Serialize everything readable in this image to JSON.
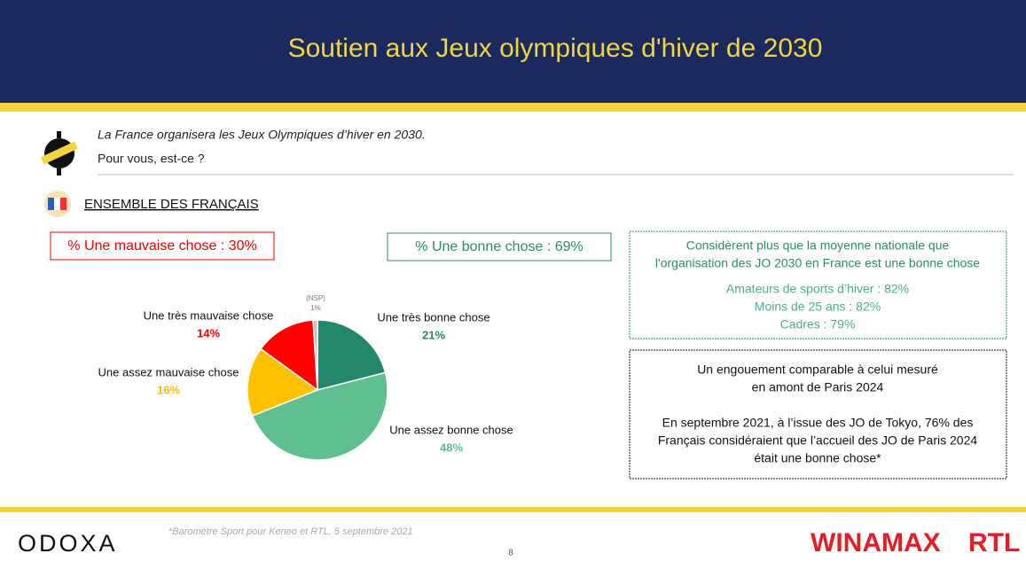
{
  "header": {
    "title": "Soutien aux Jeux olympiques d'hiver de 2030"
  },
  "question": {
    "line1": "La France organisera les Jeux Olympiques d’hiver en 2030.",
    "line2": "Pour vous, est-ce ?"
  },
  "section": "ENSEMBLE DES FRANÇAIS",
  "summary": {
    "bad": "% Une mauvaise chose : 30%",
    "good": "% Une bonne chose : 69%"
  },
  "box1": {
    "title1": "Considèrent plus que la moyenne nationale que",
    "title2": "l'organisation des JO 2030 en France est une bonne chose",
    "items": [
      "Amateurs de sports d’hiver : 82%",
      "Moins de 25 ans : 82%",
      "Cadres : 79%"
    ]
  },
  "box2": {
    "title1": "Un engouement comparable à celui mesuré",
    "title2": "en amont de Paris 2024",
    "body": [
      "En septembre 2021, à l’issue des JO de Tokyo, 76% des",
      "Français considéraient que l’accueil des JO de Paris 2024",
      "était une bonne chose*"
    ]
  },
  "footer": {
    "source": "*Baromètre Sport pour Keneo et RTL, 5 septembre 2021",
    "page": "8",
    "logo_left": "ODOXA",
    "logo_right1": "WINAMAX",
    "logo_right2": "RTL"
  },
  "chart_data": {
    "type": "pie",
    "categories": [
      "Une très bonne chose",
      "Une assez bonne chose",
      "Une assez mauvaise chose",
      "Une très mauvaise chose",
      "(NSP)"
    ],
    "values": [
      21,
      48,
      16,
      14,
      1
    ],
    "value_labels": [
      "21%",
      "48%",
      "16%",
      "14%",
      "1%"
    ],
    "colors": [
      "#23876b",
      "#5fbf90",
      "#ffc000",
      "#ff0000",
      "#bfbfbf"
    ]
  }
}
